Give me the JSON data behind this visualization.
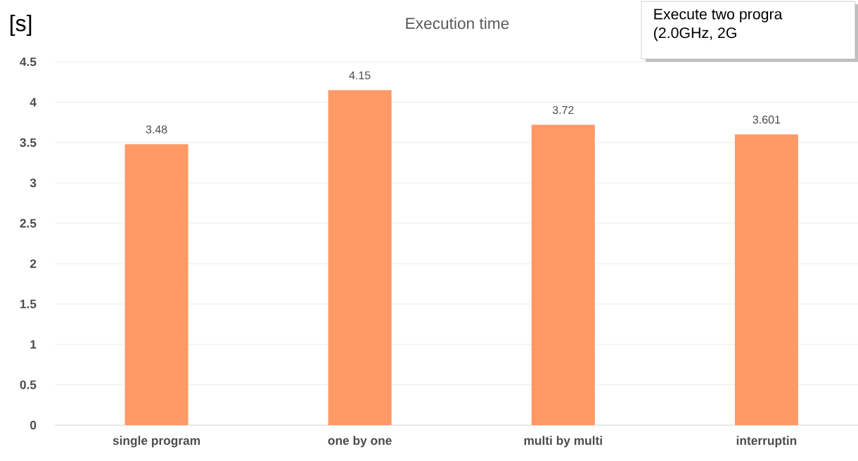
{
  "chart_data": {
    "type": "bar",
    "title": "Execution time",
    "ylabel": "[s]",
    "categories": [
      "single program",
      "one by one",
      "multi by multi",
      "interruptin"
    ],
    "values": [
      3.48,
      4.15,
      3.72,
      3.601
    ],
    "color": "#ff9966",
    "ylim": [
      0,
      4.5
    ],
    "yticks": [
      0,
      0.5,
      1,
      1.5,
      2,
      2.5,
      3,
      3.5,
      4,
      4.5
    ],
    "grid": "y",
    "data_labels": true,
    "annotations": [
      "Execute two progra",
      "(2.0GHz, 2G"
    ]
  }
}
